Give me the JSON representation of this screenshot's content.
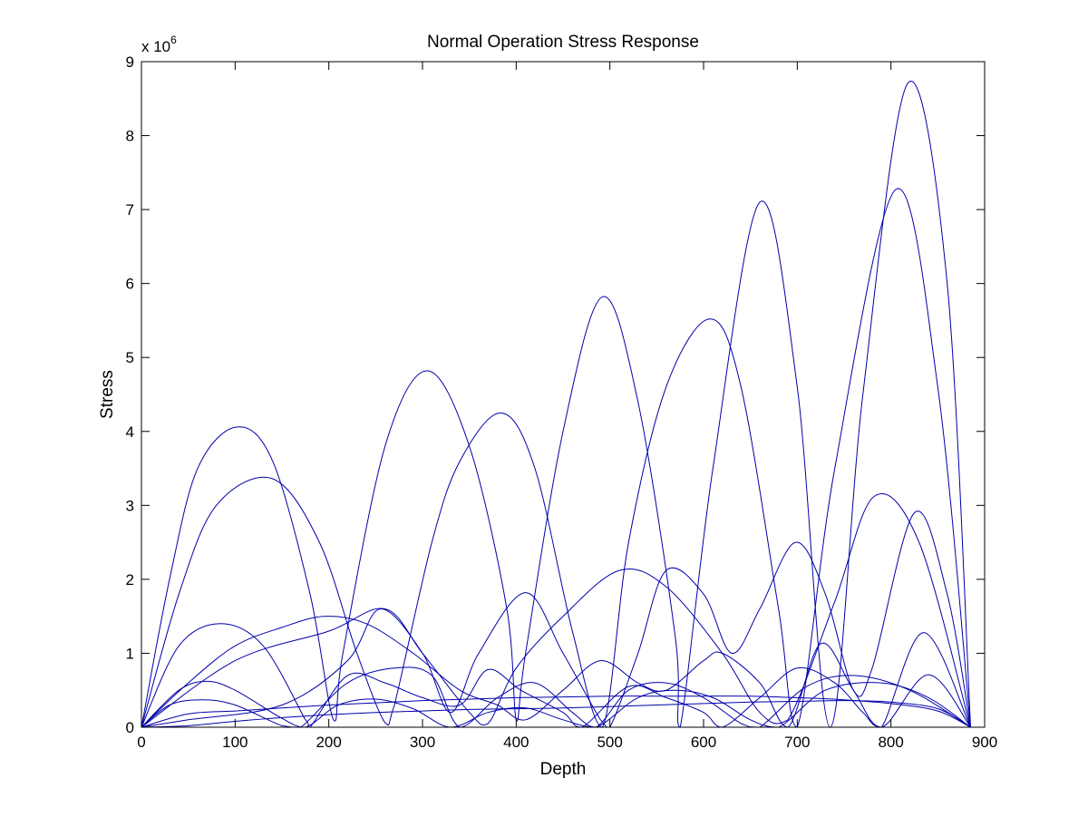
{
  "chart_data": {
    "type": "line",
    "title": "Normal Operation Stress Response",
    "xlabel": "Depth",
    "ylabel": "Stress",
    "xlim": [
      0,
      900
    ],
    "ylim": [
      0,
      9
    ],
    "x_ticks": [
      "0",
      "100",
      "200",
      "300",
      "400",
      "500",
      "600",
      "700",
      "800",
      "900"
    ],
    "y_ticks": [
      "0",
      "1",
      "2",
      "3",
      "4",
      "5",
      "6",
      "7",
      "8",
      "9"
    ],
    "y_multiplier_base": "x 10",
    "y_multiplier_exp": "6",
    "grid": false,
    "line_color": "#0000aa",
    "domain_end": 885,
    "series": [
      {
        "values": [
          [
            0,
            0
          ],
          [
            50,
            0.18
          ],
          [
            100,
            0.22
          ],
          [
            150,
            0.26
          ],
          [
            200,
            0.3
          ],
          [
            250,
            0.33
          ],
          [
            300,
            0.36
          ],
          [
            350,
            0.38
          ],
          [
            400,
            0.4
          ],
          [
            450,
            0.41
          ],
          [
            500,
            0.42
          ],
          [
            550,
            0.42
          ],
          [
            600,
            0.42
          ],
          [
            650,
            0.42
          ],
          [
            700,
            0.4
          ],
          [
            750,
            0.37
          ],
          [
            800,
            0.32
          ],
          [
            850,
            0.22
          ],
          [
            885,
            0
          ]
        ]
      },
      {
        "values": [
          [
            0,
            0
          ],
          [
            50,
            0.02
          ],
          [
            100,
            0.08
          ],
          [
            150,
            0.13
          ],
          [
            200,
            0.17
          ],
          [
            250,
            0.2
          ],
          [
            300,
            0.22
          ],
          [
            350,
            0.24
          ],
          [
            400,
            0.25
          ],
          [
            450,
            0.26
          ],
          [
            500,
            0.28
          ],
          [
            550,
            0.3
          ],
          [
            600,
            0.32
          ],
          [
            650,
            0.34
          ],
          [
            700,
            0.35
          ],
          [
            750,
            0.36
          ],
          [
            800,
            0.34
          ],
          [
            850,
            0.25
          ],
          [
            885,
            0
          ]
        ]
      },
      {
        "values": [
          [
            0,
            0
          ],
          [
            40,
            0.5
          ],
          [
            70,
            0.62
          ],
          [
            100,
            0.5
          ],
          [
            150,
            0.12
          ],
          [
            175,
            0
          ],
          [
            210,
            0.3
          ],
          [
            250,
            0.38
          ],
          [
            290,
            0.25
          ],
          [
            330,
            0
          ],
          [
            370,
            0.2
          ],
          [
            410,
            0.26
          ],
          [
            450,
            0.1
          ],
          [
            485,
            0
          ],
          [
            530,
            0.4
          ],
          [
            570,
            0.5
          ],
          [
            610,
            0.4
          ],
          [
            650,
            0.1
          ],
          [
            680,
            0
          ],
          [
            730,
            0.5
          ],
          [
            790,
            0.6
          ],
          [
            840,
            0.4
          ],
          [
            885,
            0
          ]
        ]
      },
      {
        "values": [
          [
            0,
            0
          ],
          [
            30,
            0.3
          ],
          [
            65,
            0.37
          ],
          [
            100,
            0.3
          ],
          [
            150,
            0.02
          ],
          [
            170,
            0
          ],
          [
            220,
            0.6
          ],
          [
            270,
            0.8
          ],
          [
            310,
            0.7
          ],
          [
            340,
            0
          ],
          [
            380,
            0.4
          ],
          [
            420,
            0.6
          ],
          [
            460,
            0.2
          ],
          [
            485,
            0
          ],
          [
            520,
            0.5
          ],
          [
            560,
            0.6
          ],
          [
            600,
            0.4
          ],
          [
            640,
            0.05
          ],
          [
            660,
            0
          ],
          [
            710,
            0.55
          ],
          [
            760,
            0.7
          ],
          [
            820,
            0.5
          ],
          [
            885,
            0
          ]
        ]
      },
      {
        "values": [
          [
            0,
            0
          ],
          [
            40,
            1.1
          ],
          [
            85,
            1.4
          ],
          [
            130,
            1.1
          ],
          [
            175,
            0.1
          ],
          [
            180,
            0
          ],
          [
            220,
            0.7
          ],
          [
            260,
            0.6
          ],
          [
            300,
            0.4
          ],
          [
            340,
            0.3
          ],
          [
            370,
            0.78
          ],
          [
            405,
            0.5
          ],
          [
            450,
            0.2
          ],
          [
            470,
            0
          ],
          [
            520,
            0.55
          ],
          [
            560,
            0.4
          ],
          [
            600,
            0.2
          ],
          [
            620,
            0
          ],
          [
            660,
            0.4
          ],
          [
            700,
            0.8
          ],
          [
            740,
            0.6
          ],
          [
            770,
            0.2
          ],
          [
            790,
            0
          ],
          [
            835,
            1.28
          ],
          [
            885,
            0
          ]
        ]
      },
      {
        "values": [
          [
            0,
            0
          ],
          [
            50,
            0.6
          ],
          [
            100,
            1.1
          ],
          [
            150,
            1.35
          ],
          [
            195,
            1.5
          ],
          [
            240,
            1.4
          ],
          [
            290,
            1.0
          ],
          [
            340,
            0.5
          ],
          [
            380,
            0.3
          ],
          [
            410,
            0.1
          ],
          [
            450,
            0.5
          ],
          [
            490,
            0.9
          ],
          [
            530,
            0.6
          ],
          [
            560,
            0.5
          ],
          [
            600,
            0.9
          ],
          [
            620,
            1.0
          ],
          [
            660,
            0.6
          ],
          [
            690,
            0
          ],
          [
            725,
            1.13
          ],
          [
            760,
            0.5
          ],
          [
            790,
            0
          ],
          [
            840,
            0.71
          ],
          [
            885,
            0
          ]
        ]
      },
      {
        "values": [
          [
            0,
            0
          ],
          [
            30,
            2.0
          ],
          [
            60,
            3.5
          ],
          [
            102,
            4.06
          ],
          [
            140,
            3.6
          ],
          [
            180,
            1.8
          ],
          [
            205,
            0.1
          ],
          [
            215,
            1.0
          ],
          [
            260,
            3.8
          ],
          [
            305,
            4.82
          ],
          [
            350,
            3.8
          ],
          [
            390,
            1.6
          ],
          [
            400,
            0.1
          ],
          [
            410,
            1.0
          ],
          [
            450,
            4.0
          ],
          [
            492,
            5.82
          ],
          [
            530,
            4.4
          ],
          [
            570,
            1.2
          ],
          [
            575,
            0
          ],
          [
            610,
            3.5
          ],
          [
            660,
            7.1
          ],
          [
            700,
            4.6
          ],
          [
            735,
            0
          ],
          [
            770,
            4.5
          ],
          [
            818,
            8.71
          ],
          [
            860,
            6.0
          ],
          [
            885,
            0
          ]
        ]
      },
      {
        "values": [
          [
            0,
            0
          ],
          [
            40,
            1.8
          ],
          [
            80,
            3.0
          ],
          [
            140,
            3.36
          ],
          [
            190,
            2.5
          ],
          [
            230,
            1.0
          ],
          [
            260,
            0.06
          ],
          [
            270,
            0.3
          ],
          [
            310,
            2.5
          ],
          [
            340,
            3.6
          ],
          [
            384,
            4.25
          ],
          [
            420,
            3.5
          ],
          [
            460,
            1.3
          ],
          [
            492,
            0
          ],
          [
            520,
            2.5
          ],
          [
            560,
            4.6
          ],
          [
            607,
            5.52
          ],
          [
            640,
            4.6
          ],
          [
            680,
            1.6
          ],
          [
            700,
            0
          ],
          [
            740,
            3.5
          ],
          [
            805,
            7.27
          ],
          [
            850,
            4.6
          ],
          [
            885,
            0
          ]
        ]
      },
      {
        "values": [
          [
            0,
            0
          ],
          [
            100,
            0.9
          ],
          [
            200,
            1.3
          ],
          [
            260,
            1.6
          ],
          [
            300,
            1.0
          ],
          [
            350,
            0.2
          ],
          [
            370,
            0.05
          ],
          [
            400,
            0.8
          ],
          [
            450,
            1.5
          ],
          [
            510,
            2.12
          ],
          [
            560,
            1.9
          ],
          [
            620,
            1.0
          ],
          [
            660,
            0.2
          ],
          [
            690,
            0.1
          ],
          [
            740,
            1.7
          ],
          [
            782,
            3.12
          ],
          [
            830,
            2.5
          ],
          [
            885,
            0
          ]
        ]
      },
      {
        "values": [
          [
            0,
            0
          ],
          [
            50,
            0.1
          ],
          [
            150,
            0.3
          ],
          [
            220,
            0.9
          ],
          [
            255,
            1.6
          ],
          [
            300,
            1.0
          ],
          [
            330,
            0.2
          ],
          [
            360,
            1.0
          ],
          [
            410,
            1.82
          ],
          [
            450,
            1.0
          ],
          [
            490,
            0.1
          ],
          [
            500,
            0
          ],
          [
            530,
            1.0
          ],
          [
            560,
            2.12
          ],
          [
            600,
            1.8
          ],
          [
            630,
            1.0
          ],
          [
            660,
            1.6
          ],
          [
            698,
            2.5
          ],
          [
            730,
            1.8
          ],
          [
            760,
            0.5
          ],
          [
            780,
            0.8
          ],
          [
            825,
            2.9
          ],
          [
            860,
            1.8
          ],
          [
            885,
            0
          ]
        ]
      }
    ]
  }
}
